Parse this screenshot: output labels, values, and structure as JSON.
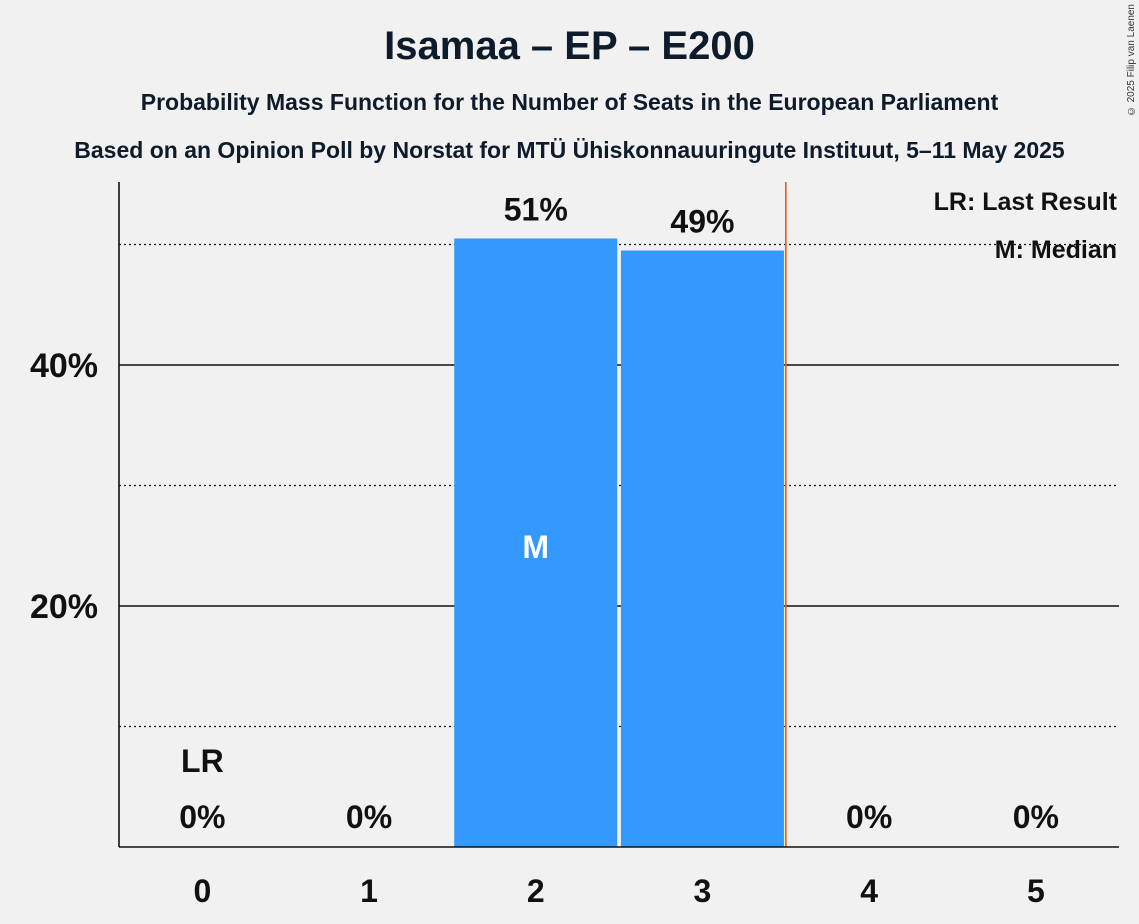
{
  "title": "Isamaa – EP – E200",
  "subtitle": "Probability Mass Function for the Number of Seats in the European Parliament",
  "subtitle2": "Based on an Opinion Poll by Norstat for MTÜ Ühiskonnauuringute Instituut, 5–11 May 2025",
  "copyright": "© 2025 Filip van Laenen",
  "legend": {
    "last_result": "LR: Last Result",
    "median": "M: Median"
  },
  "chart_data": {
    "type": "bar",
    "categories": [
      "0",
      "1",
      "2",
      "3",
      "4",
      "5"
    ],
    "values": [
      0,
      0,
      50.5,
      49.5,
      0,
      0
    ],
    "value_labels": [
      "0%",
      "0%",
      "51%",
      "49%",
      "0%",
      "0%"
    ],
    "y_ticks": [
      {
        "value": 20,
        "label": "20%"
      },
      {
        "value": 40,
        "label": "40%"
      }
    ],
    "ylim": [
      0,
      55
    ],
    "last_result_seat": 0,
    "last_result_marker": "LR",
    "median_seat": 2,
    "median_marker": "M",
    "threshold_after_seat": 3,
    "grid": true,
    "legend_position": "top-right",
    "bar_color": "#3399ff",
    "threshold_color": "#e06010"
  }
}
